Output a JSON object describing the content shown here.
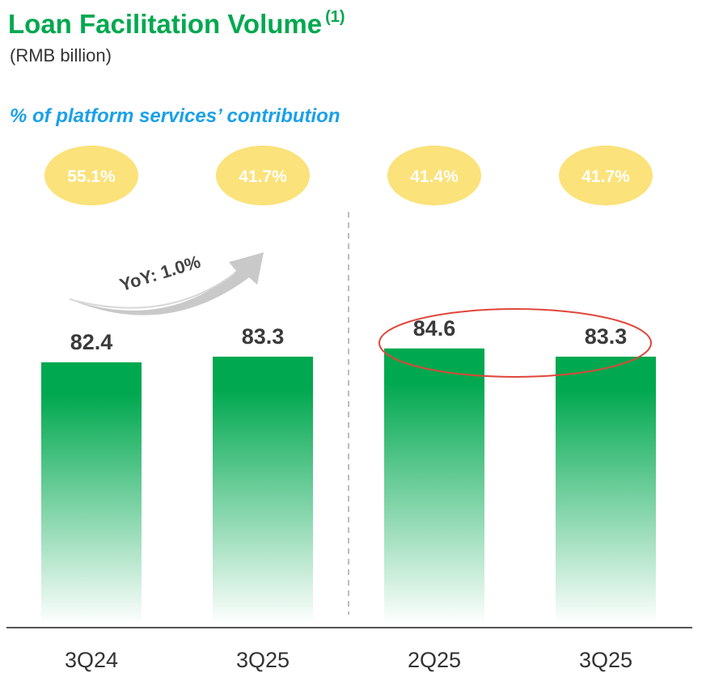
{
  "header": {
    "title": "Loan Facilitation Volume",
    "title_footnote": "(1)",
    "unit": "(RMB billion)",
    "contribution_heading": "% of platform services’ contribution"
  },
  "colors": {
    "title": "#00a84f",
    "bar_top": "#00a84f",
    "bar_bottom": "#ffffff",
    "badge": "#fbe27a",
    "contribution_heading": "#1aa0e8",
    "highlight_ellipse": "#e0463a",
    "arrow": "#c9c9c9"
  },
  "chart_data": {
    "type": "bar",
    "categories": [
      "3Q24",
      "3Q25",
      "2Q25",
      "3Q25"
    ],
    "values": [
      82.4,
      83.3,
      84.6,
      83.3
    ],
    "data_labels": [
      "82.4",
      "83.3",
      "84.6",
      "83.3"
    ],
    "contribution_labels": [
      "55.1%",
      "41.7%",
      "41.4%",
      "41.7%"
    ],
    "annotations": {
      "yoy_label": "YoY: 1.0%"
    },
    "ylim": [
      0,
      100
    ],
    "grid": false,
    "legend": "none"
  }
}
